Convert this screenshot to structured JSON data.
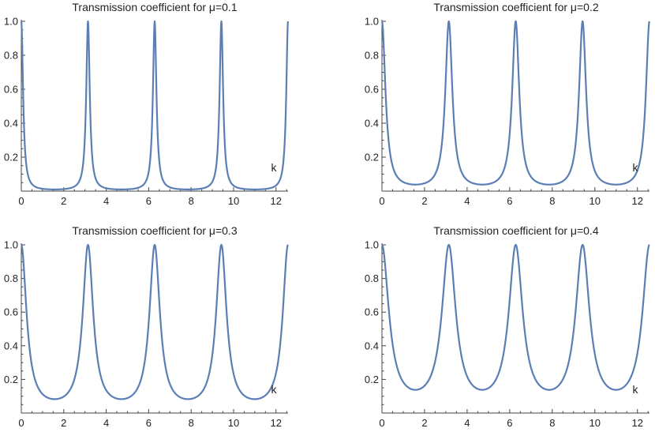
{
  "chart_data": [
    {
      "type": "line",
      "title": "Transmission coefficient for μ=0.1",
      "mu": 0.1,
      "xlabel": "k",
      "ylabel": "",
      "xlim": [
        0,
        12.566
      ],
      "ylim": [
        0,
        1.0
      ],
      "x_ticks": [
        0,
        2,
        4,
        6,
        8,
        10,
        12
      ],
      "y_ticks": [
        0.2,
        0.4,
        0.6,
        0.8,
        1.0
      ],
      "peaks_at": [
        0,
        3.1416,
        6.2832,
        9.4248,
        12.566
      ],
      "peak_value": 1.0,
      "min_value": 0.0099,
      "color": "#5b7fb5",
      "grid": false
    },
    {
      "type": "line",
      "title": "Transmission coefficient for μ=0.2",
      "mu": 0.2,
      "xlabel": "k",
      "ylabel": "",
      "xlim": [
        0,
        12.566
      ],
      "ylim": [
        0,
        1.0
      ],
      "x_ticks": [
        0,
        2,
        4,
        6,
        8,
        10,
        12
      ],
      "y_ticks": [
        0.2,
        0.4,
        0.6,
        0.8,
        1.0
      ],
      "peaks_at": [
        0,
        3.1416,
        6.2832,
        9.4248,
        12.566
      ],
      "peak_value": 1.0,
      "min_value": 0.0385,
      "color": "#5b7fb5",
      "grid": false
    },
    {
      "type": "line",
      "title": "Transmission coefficient for μ=0.3",
      "mu": 0.3,
      "xlabel": "k",
      "ylabel": "",
      "xlim": [
        0,
        12.566
      ],
      "ylim": [
        0,
        1.0
      ],
      "x_ticks": [
        0,
        2,
        4,
        6,
        8,
        10,
        12
      ],
      "y_ticks": [
        0.2,
        0.4,
        0.6,
        0.8,
        1.0
      ],
      "peaks_at": [
        0,
        3.1416,
        6.2832,
        9.4248,
        12.566
      ],
      "peak_value": 1.0,
      "min_value": 0.0826,
      "color": "#5b7fb5",
      "grid": false
    },
    {
      "type": "line",
      "title": "Transmission coefficient for μ=0.4",
      "mu": 0.4,
      "xlabel": "k",
      "ylabel": "",
      "xlim": [
        0,
        12.566
      ],
      "ylim": [
        0,
        1.0
      ],
      "x_ticks": [
        0,
        2,
        4,
        6,
        8,
        10,
        12
      ],
      "y_ticks": [
        0.2,
        0.4,
        0.6,
        0.8,
        1.0
      ],
      "peaks_at": [
        0,
        3.1416,
        6.2832,
        9.4248,
        12.566
      ],
      "peak_value": 1.0,
      "min_value": 0.1379,
      "color": "#5b7fb5",
      "grid": false
    }
  ]
}
